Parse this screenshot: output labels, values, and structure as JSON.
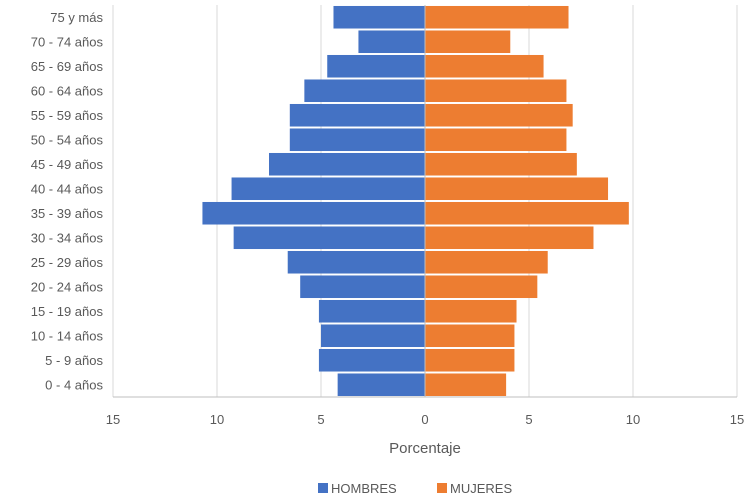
{
  "chart_data": {
    "type": "bar",
    "orientation": "horizontal",
    "categories": [
      "0 - 4 años",
      "5 - 9 años",
      "10 - 14 años",
      "15 - 19 años",
      "20 - 24 años",
      "25 - 29 años",
      "30 - 34 años",
      "35 - 39 años",
      "40 - 44 años",
      "45 - 49 años",
      "50 - 54 años",
      "55 - 59 años",
      "60 - 64 años",
      "65 - 69 años",
      "70 - 74 años",
      "75 y más"
    ],
    "series": [
      {
        "name": "HOMBRES",
        "color": "#4472C4",
        "values": [
          4.2,
          5.1,
          5.0,
          5.1,
          6.0,
          6.6,
          9.2,
          10.7,
          9.3,
          7.5,
          6.5,
          6.5,
          5.8,
          4.7,
          3.2,
          4.4
        ]
      },
      {
        "name": "MUJERES",
        "color": "#ED7D31",
        "values": [
          3.9,
          4.3,
          4.3,
          4.4,
          5.4,
          5.9,
          8.1,
          9.8,
          8.8,
          7.3,
          6.8,
          7.1,
          6.8,
          5.7,
          4.1,
          6.9
        ]
      }
    ],
    "xlabel": "Porcentaje",
    "ylabel": "",
    "xlim": [
      -15,
      15
    ],
    "xticks": [
      -15,
      -10,
      -5,
      0,
      5,
      10,
      15
    ],
    "xtick_labels": [
      "15",
      "10",
      "5",
      "0",
      "5",
      "10",
      "15"
    ],
    "grid": "vertical",
    "legend": "bottom"
  }
}
